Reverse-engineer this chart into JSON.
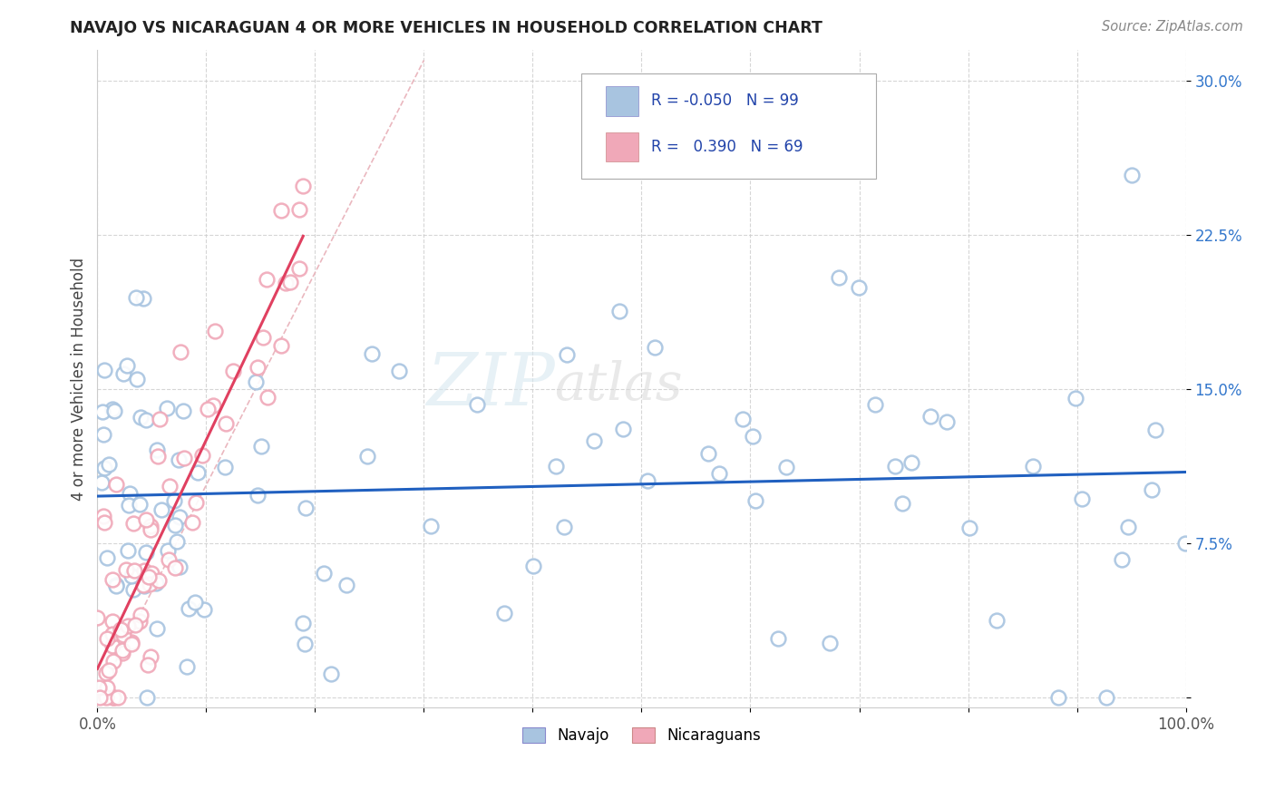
{
  "title": "NAVAJO VS NICARAGUAN 4 OR MORE VEHICLES IN HOUSEHOLD CORRELATION CHART",
  "source": "Source: ZipAtlas.com",
  "ylabel": "4 or more Vehicles in Household",
  "xlim": [
    0.0,
    1.0
  ],
  "ylim": [
    -0.005,
    0.315
  ],
  "xticks": [
    0.0,
    0.1,
    0.2,
    0.3,
    0.4,
    0.5,
    0.6,
    0.7,
    0.8,
    0.9,
    1.0
  ],
  "xticklabels": [
    "0.0%",
    "",
    "",
    "",
    "",
    "",
    "",
    "",
    "",
    "",
    "100.0%"
  ],
  "ytick_vals": [
    0.0,
    0.075,
    0.15,
    0.225,
    0.3
  ],
  "ytick_labels": [
    "",
    "7.5%",
    "15.0%",
    "22.5%",
    "30.0%"
  ],
  "navajo_R": -0.05,
  "navajo_N": 99,
  "nicaraguan_R": 0.39,
  "nicaraguan_N": 69,
  "navajo_color": "#a8c4e0",
  "nicaraguan_color": "#f0a8b8",
  "navajo_line_color": "#2060c0",
  "nicaraguan_line_color": "#e04060",
  "diag_line_color": "#d0a0a8",
  "watermark_zip": "ZIP",
  "watermark_atlas": "atlas",
  "grid_color": "#cccccc"
}
